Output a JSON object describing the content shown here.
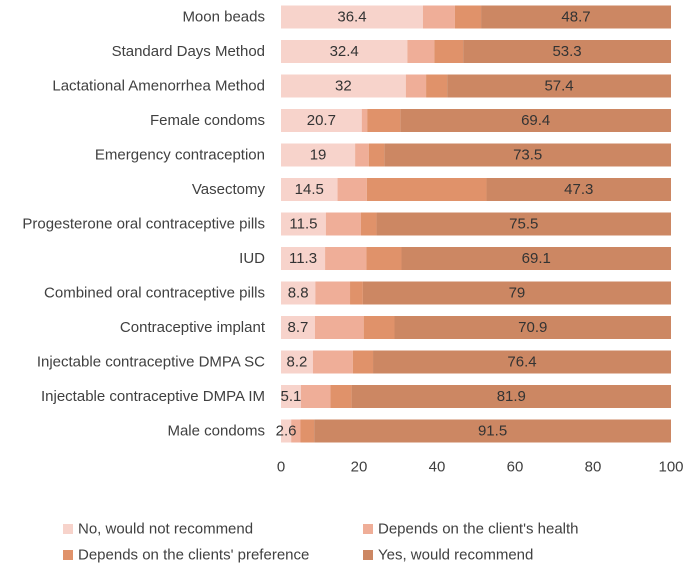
{
  "chart_data": {
    "type": "bar",
    "orientation": "horizontal",
    "stacked": true,
    "title": "",
    "xlabel": "",
    "ylabel": "",
    "xlim": [
      0,
      100
    ],
    "xticks": [
      0,
      20,
      40,
      60,
      80,
      100
    ],
    "grid": false,
    "legend_position": "bottom",
    "categories": [
      "Moon beads",
      "Standard Days Method",
      "Lactational Amenorrhea Method",
      "Female condoms",
      "Emergency contraception",
      "Vasectomy",
      "Progesterone oral contraceptive pills",
      "IUD",
      "Combined oral contraceptive pills",
      "Contraceptive implant",
      "Injectable contraceptive DMPA SC",
      "Injectable contraceptive DMPA IM",
      "Male condoms"
    ],
    "series": [
      {
        "name": "No, would not recommend",
        "color": "#F7D3CB",
        "labeled": true,
        "values": [
          36.4,
          32.4,
          32,
          20.7,
          19,
          14.5,
          11.5,
          11.3,
          8.8,
          8.7,
          8.2,
          5.1,
          2.6
        ]
      },
      {
        "name": "Depends on the client's health",
        "color": "#EFAE98",
        "labeled": false,
        "values": [
          8.2,
          6.9,
          5.2,
          1.4,
          3.5,
          7.5,
          9.0,
          10.6,
          8.9,
          12.5,
          10.2,
          7.6,
          2.4
        ]
      },
      {
        "name": "Depends on the clients' preference",
        "color": "#E0926A",
        "labeled": false,
        "values": [
          6.7,
          7.4,
          5.4,
          8.5,
          4.0,
          30.7,
          4.0,
          9.0,
          3.3,
          7.9,
          5.2,
          5.4,
          3.5
        ]
      },
      {
        "name": "Yes, would recommend",
        "color": "#CC8763",
        "labeled": true,
        "values": [
          48.7,
          53.3,
          57.4,
          69.4,
          73.5,
          47.3,
          75.5,
          69.1,
          79,
          70.9,
          76.4,
          81.9,
          91.5
        ]
      }
    ]
  }
}
